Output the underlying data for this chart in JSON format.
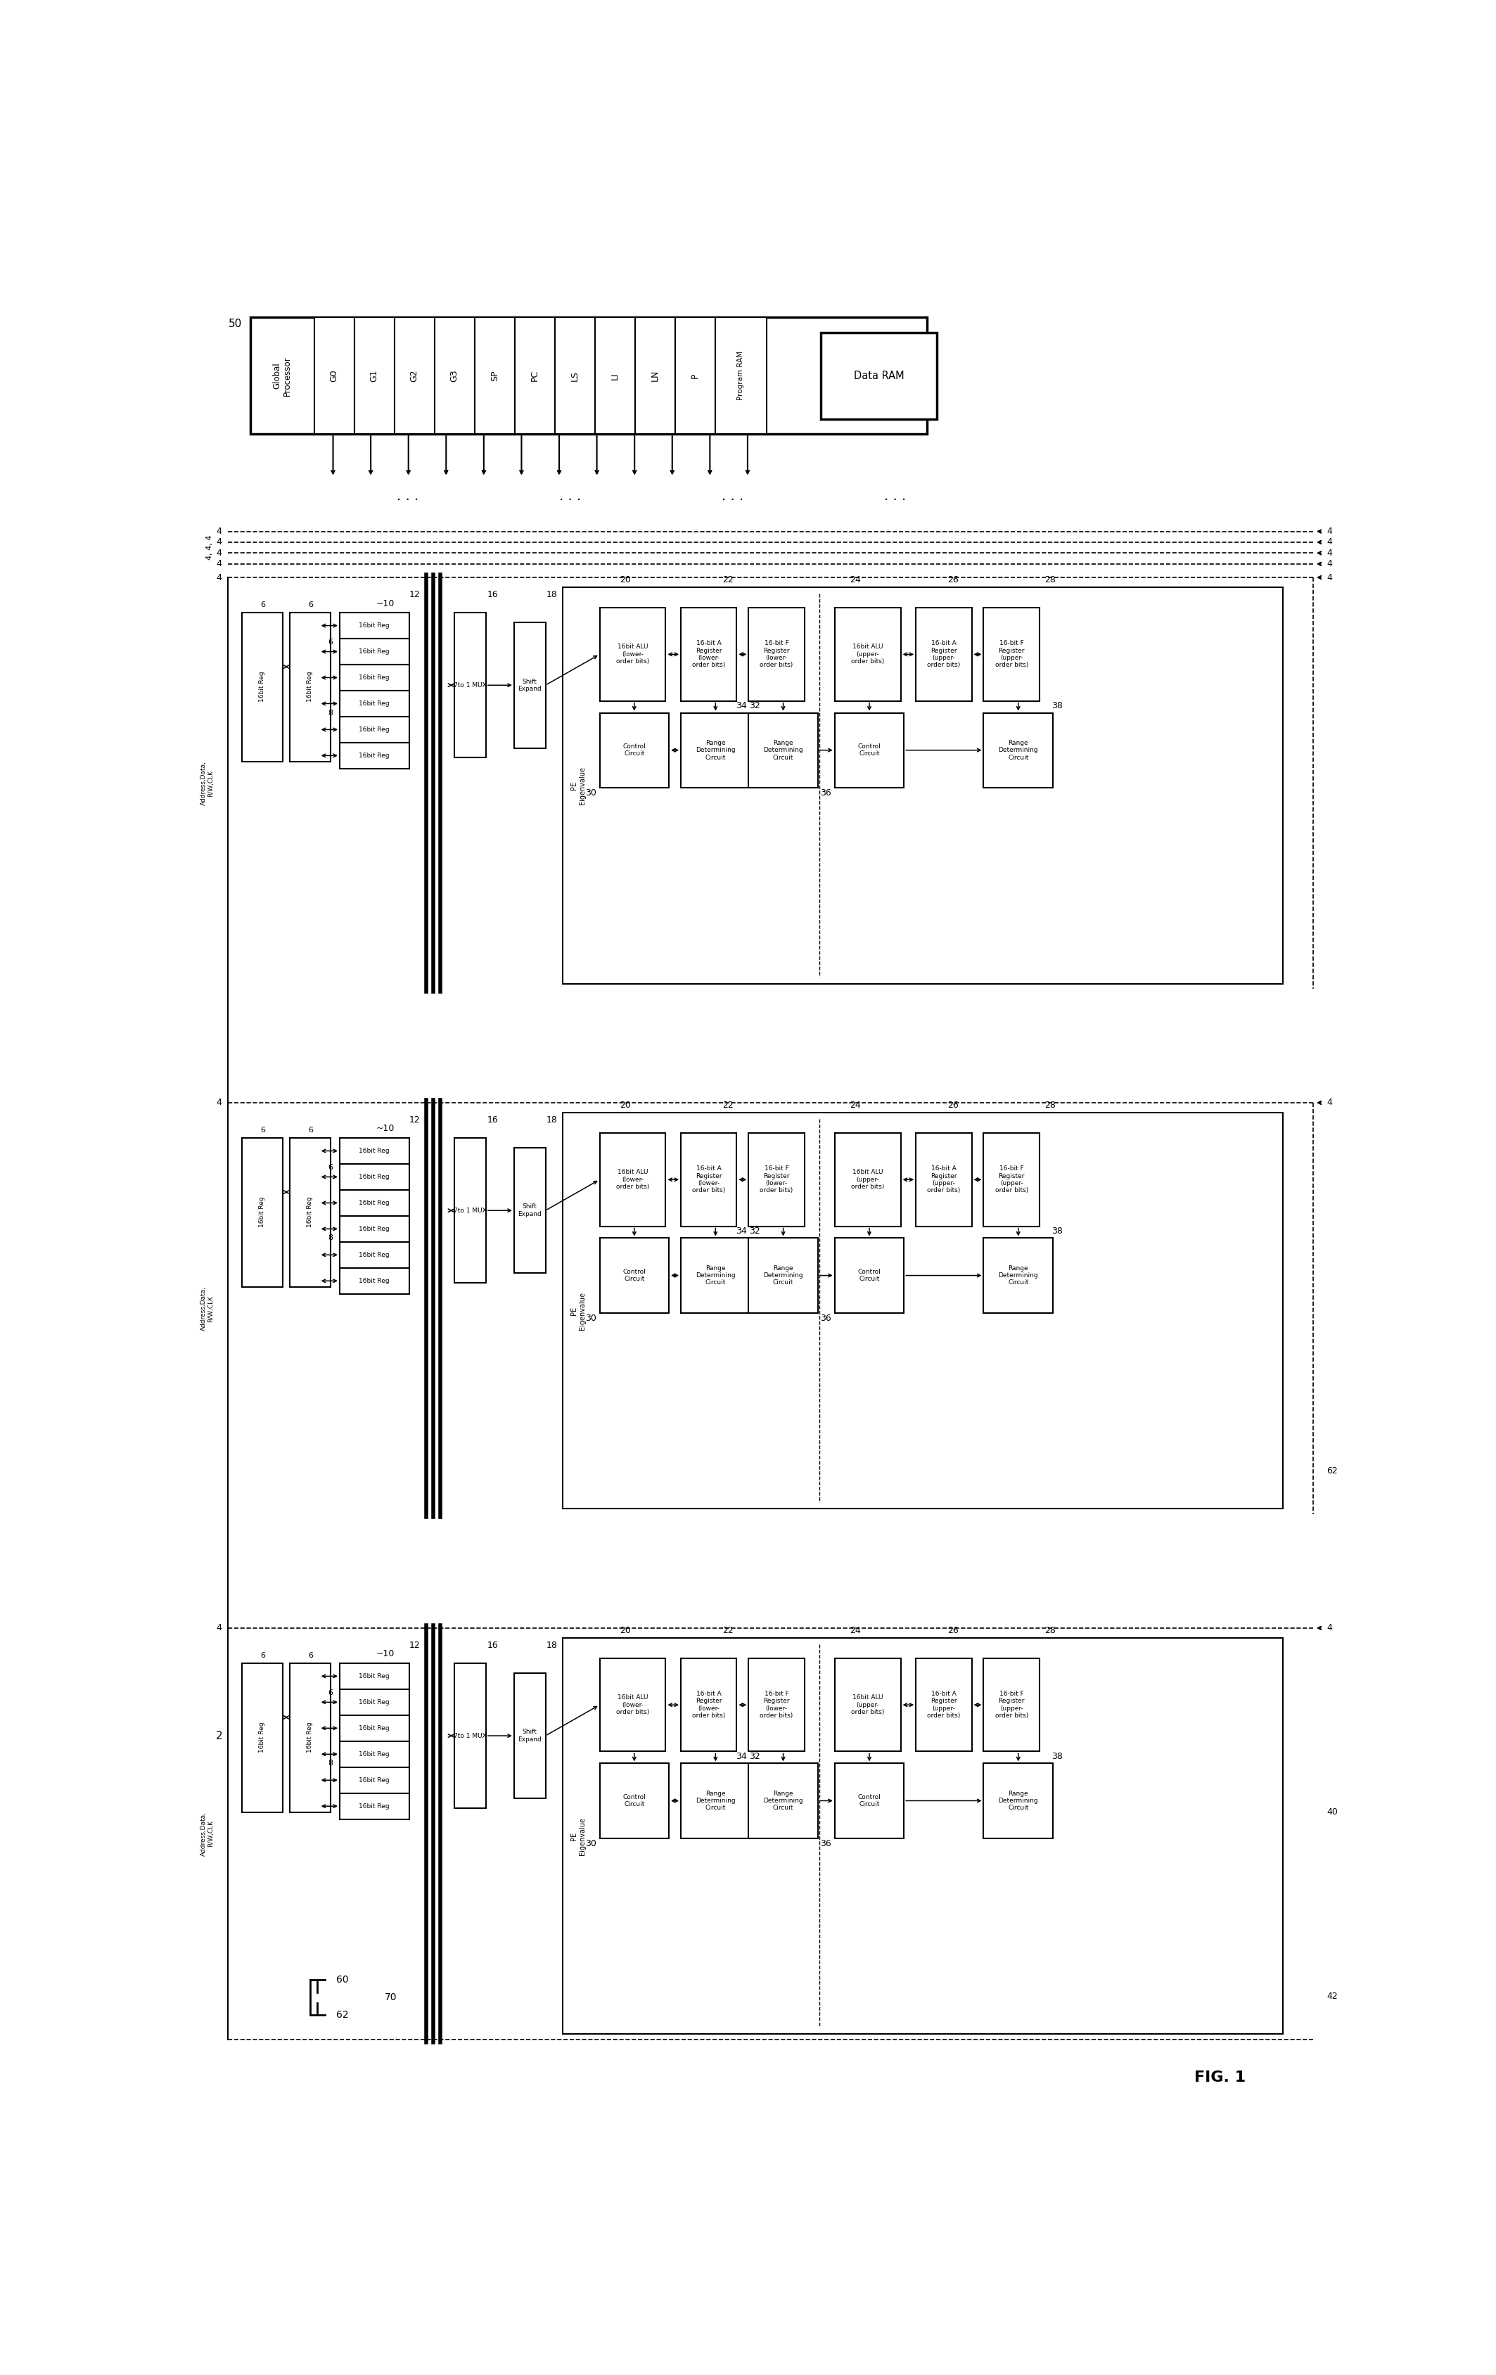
{
  "fig_label": "FIG. 1",
  "background": "#ffffff",
  "gp_registers": [
    "G0",
    "G1",
    "G2",
    "G3",
    "SP",
    "PC",
    "LS",
    "LI",
    "LN",
    "P"
  ],
  "component_numbers": {
    "global_proc": "50",
    "ref2": "2",
    "ref4": "4",
    "ref10": "10",
    "ref12": "12",
    "ref16": "16",
    "ref18": "18",
    "ref20": "20",
    "ref22": "22",
    "ref24": "24",
    "ref26": "26",
    "ref28": "28",
    "ref30": "30",
    "ref32": "32",
    "ref34": "34",
    "ref36": "36",
    "ref38": "38",
    "ref40": "40",
    "ref42": "42",
    "ref60": "60",
    "ref62": "62",
    "ref70": "70"
  }
}
